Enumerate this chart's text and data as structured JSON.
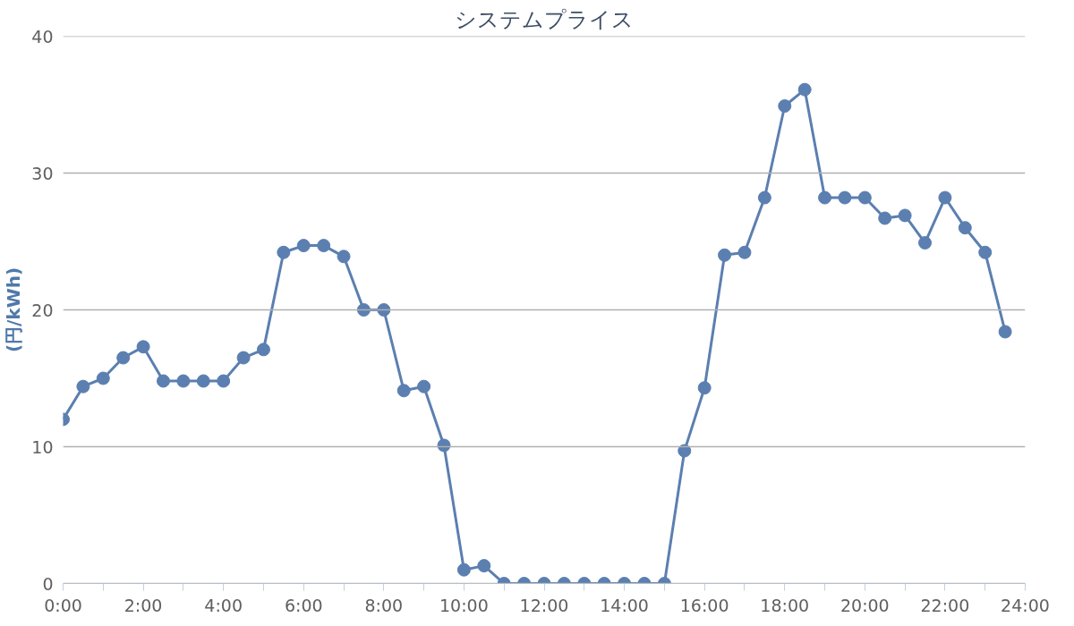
{
  "chart_data": {
    "type": "line",
    "title": "システムプライス",
    "ylabel": "(円/kWh)",
    "x": [
      0,
      0.5,
      1,
      1.5,
      2,
      2.5,
      3,
      3.5,
      4,
      4.5,
      5,
      5.5,
      6,
      6.5,
      7,
      7.5,
      8,
      8.5,
      9,
      9.5,
      10,
      10.5,
      11,
      11.5,
      12,
      12.5,
      13,
      13.5,
      14,
      14.5,
      15,
      15.5,
      16,
      16.5,
      17,
      17.5,
      18,
      18.5,
      19,
      19.5,
      20,
      20.5,
      21,
      21.5,
      22,
      22.5,
      23,
      23.5
    ],
    "series": [
      {
        "color": "#5b7fb0",
        "values": [
          12.0,
          14.4,
          15.0,
          16.5,
          17.3,
          14.8,
          14.8,
          14.8,
          14.8,
          16.5,
          17.1,
          24.2,
          24.7,
          24.7,
          23.9,
          20.0,
          20.0,
          14.1,
          14.4,
          10.1,
          1.0,
          1.3,
          0,
          0,
          0,
          0,
          0,
          0,
          0,
          0,
          0,
          9.7,
          14.3,
          24.0,
          24.2,
          28.2,
          34.9,
          36.1,
          28.2,
          28.2,
          28.2,
          26.7,
          26.9,
          24.9,
          28.2,
          26.0,
          24.2,
          18.4
        ]
      }
    ],
    "xlim": [
      0,
      24
    ],
    "ylim": [
      0,
      40
    ],
    "xticks": [
      {
        "value": 0,
        "label": "0:00"
      },
      {
        "value": 1,
        "label": null
      },
      {
        "value": 2,
        "label": "2:00"
      },
      {
        "value": 3,
        "label": null
      },
      {
        "value": 4,
        "label": "4:00"
      },
      {
        "value": 5,
        "label": null
      },
      {
        "value": 6,
        "label": "6:00"
      },
      {
        "value": 7,
        "label": null
      },
      {
        "value": 8,
        "label": "8:00"
      },
      {
        "value": 9,
        "label": null
      },
      {
        "value": 10,
        "label": "10:00"
      },
      {
        "value": 11,
        "label": null
      },
      {
        "value": 12,
        "label": "12:00"
      },
      {
        "value": 13,
        "label": null
      },
      {
        "value": 14,
        "label": "14:00"
      },
      {
        "value": 15,
        "label": null
      },
      {
        "value": 16,
        "label": "16:00"
      },
      {
        "value": 17,
        "label": null
      },
      {
        "value": 18,
        "label": "18:00"
      },
      {
        "value": 19,
        "label": null
      },
      {
        "value": 20,
        "label": "20:00"
      },
      {
        "value": 21,
        "label": null
      },
      {
        "value": 22,
        "label": "22:00"
      },
      {
        "value": 23,
        "label": null
      },
      {
        "value": 24,
        "label": "24:00"
      }
    ],
    "yticks": [
      0,
      10,
      20,
      30,
      40
    ],
    "grid": "y",
    "marker": "circle",
    "line_style": "solid"
  }
}
